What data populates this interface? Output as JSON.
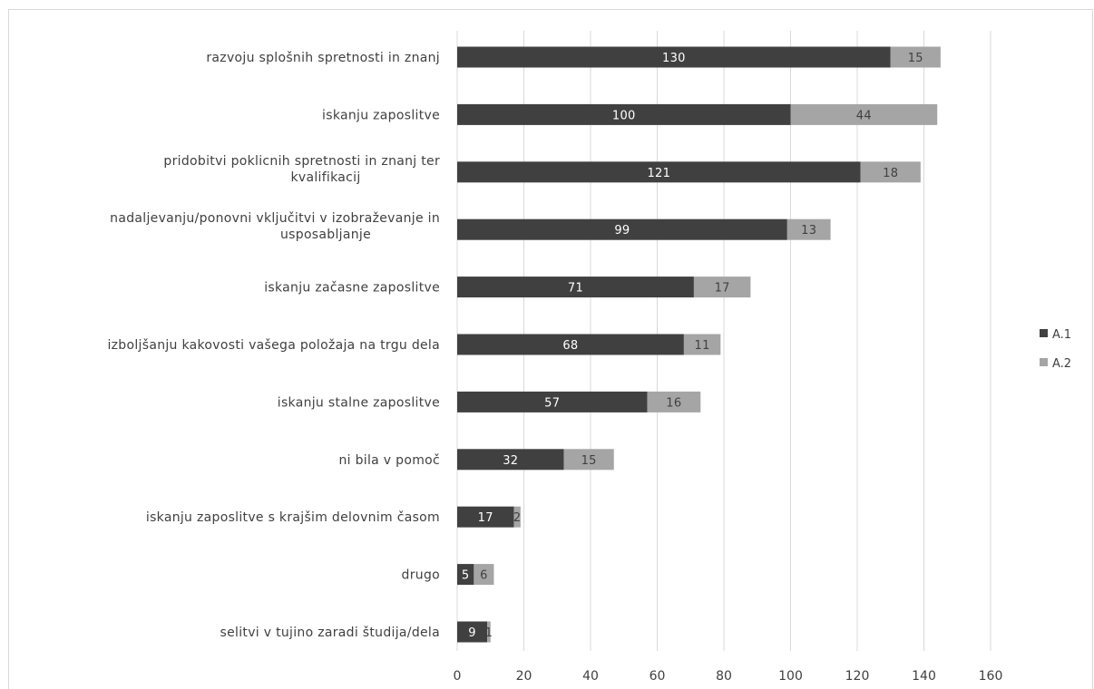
{
  "chart_data": {
    "type": "bar",
    "orientation": "horizontal",
    "stacked": true,
    "categories": [
      "razvoju splošnih spretnosti in znanj",
      "iskanju zaposlitve",
      "pridobitvi poklicnih spretnosti in znanj ter kvalifikacij",
      "nadaljevanju/ponovni vključitvi v izobraževanje in usposabljanje",
      "iskanju začasne zaposlitve",
      "izboljšanju kakovosti vašega položaja na trgu dela",
      "iskanju stalne zaposlitve",
      "ni bila v pomoč",
      "iskanju zaposlitve s krajšim delovnim časom",
      "drugo",
      "selitvi v tujino zaradi študija/dela"
    ],
    "series": [
      {
        "name": "A.1",
        "color": "#404040",
        "values": [
          130,
          100,
          121,
          99,
          71,
          68,
          57,
          32,
          17,
          5,
          9
        ]
      },
      {
        "name": "A.2",
        "color": "#a5a5a5",
        "values": [
          15,
          44,
          18,
          13,
          17,
          11,
          16,
          15,
          2,
          6,
          1
        ]
      }
    ],
    "xlim": [
      0,
      160
    ],
    "x_ticks": [
      0,
      20,
      40,
      60,
      80,
      100,
      120,
      140,
      160
    ],
    "grid": "vertical",
    "legend_position": "right",
    "data_labels": true
  }
}
